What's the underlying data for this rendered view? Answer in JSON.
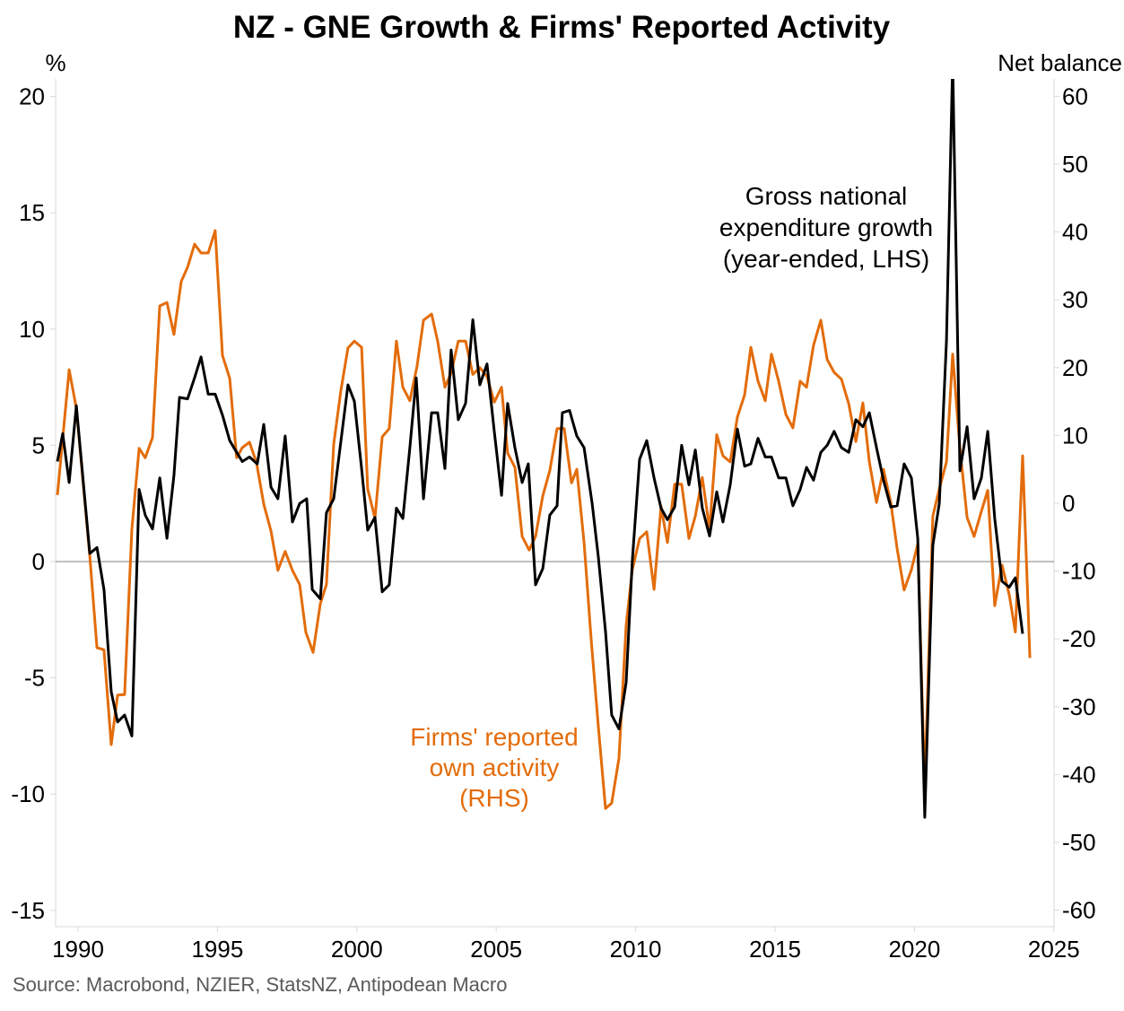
{
  "chart_data": {
    "type": "line",
    "title": "NZ - GNE Growth & Firms' Reported Activity",
    "left_axis": {
      "label": "%",
      "ticks": [
        20,
        15,
        10,
        5,
        0,
        -5,
        -10,
        -15
      ],
      "range": [
        -15.5,
        20.7
      ]
    },
    "right_axis": {
      "label": "Net balance",
      "ticks": [
        60,
        50,
        40,
        30,
        20,
        10,
        0,
        -10,
        -20,
        -30,
        -40,
        -50,
        -60
      ],
      "range": [
        -62,
        62
      ]
    },
    "x_axis": {
      "ticks": [
        1990,
        1995,
        2000,
        2005,
        2010,
        2015,
        2020,
        2025
      ],
      "range": [
        1989.2,
        2025
      ]
    },
    "zero_line": true,
    "colors": {
      "gne": "#000000",
      "firms": "#E36C0A",
      "zero": "#808080",
      "axis": "#d9d9d9"
    },
    "annotations": {
      "gne": [
        "Gross national",
        "expenditure growth",
        "(year-ended, LHS)"
      ],
      "firms": [
        "Firms' reported",
        "own activity",
        "(RHS)"
      ]
    },
    "series": [
      {
        "name": "Gross national expenditure growth (year-ended, LHS)",
        "axis": "left",
        "points": [
          [
            1989.26,
            4.3
          ],
          [
            1989.45,
            5.5
          ],
          [
            1989.68,
            3.4
          ],
          [
            1989.94,
            6.7
          ],
          [
            1990.42,
            0.35
          ],
          [
            1990.68,
            0.6
          ],
          [
            1990.93,
            -1.2
          ],
          [
            1991.19,
            -5.6
          ],
          [
            1991.42,
            -6.9
          ],
          [
            1991.67,
            -6.6
          ],
          [
            1991.93,
            -7.5
          ],
          [
            1992.19,
            3.1
          ],
          [
            1992.41,
            2.0
          ],
          [
            1992.67,
            1.4
          ],
          [
            1992.93,
            3.6
          ],
          [
            1993.19,
            1.0
          ],
          [
            1993.44,
            3.7
          ],
          [
            1993.64,
            7.06
          ],
          [
            1993.93,
            7.0
          ],
          [
            1994.18,
            7.9
          ],
          [
            1994.41,
            8.8
          ],
          [
            1994.67,
            7.2
          ],
          [
            1994.92,
            7.2
          ],
          [
            1995.18,
            6.3
          ],
          [
            1995.44,
            5.2
          ],
          [
            1995.69,
            4.7
          ],
          [
            1995.89,
            4.3
          ],
          [
            1996.15,
            4.5
          ],
          [
            1996.43,
            4.2
          ],
          [
            1996.66,
            5.9
          ],
          [
            1996.92,
            3.2
          ],
          [
            1997.17,
            2.7
          ],
          [
            1997.43,
            5.4
          ],
          [
            1997.69,
            1.7
          ],
          [
            1997.95,
            2.5
          ],
          [
            1998.2,
            2.7
          ],
          [
            1998.4,
            -1.2
          ],
          [
            1998.69,
            -1.6
          ],
          [
            1998.91,
            2.1
          ],
          [
            1999.17,
            2.7
          ],
          [
            1999.43,
            5.2
          ],
          [
            1999.68,
            7.6
          ],
          [
            1999.91,
            6.9
          ],
          [
            2000.17,
            4.0
          ],
          [
            2000.39,
            1.35
          ],
          [
            2000.65,
            1.9
          ],
          [
            2000.91,
            -1.3
          ],
          [
            2001.16,
            -1.0
          ],
          [
            2001.42,
            2.3
          ],
          [
            2001.65,
            1.85
          ],
          [
            2001.9,
            4.9
          ],
          [
            2002.13,
            7.9
          ],
          [
            2002.39,
            2.7
          ],
          [
            2002.68,
            6.4
          ],
          [
            2002.9,
            6.4
          ],
          [
            2003.16,
            4.0
          ],
          [
            2003.38,
            9.1
          ],
          [
            2003.64,
            6.1
          ],
          [
            2003.9,
            6.8
          ],
          [
            2004.16,
            10.4
          ],
          [
            2004.41,
            7.6
          ],
          [
            2004.67,
            8.5
          ],
          [
            2004.93,
            5.6
          ],
          [
            2005.19,
            2.85
          ],
          [
            2005.41,
            6.8
          ],
          [
            2005.67,
            4.9
          ],
          [
            2005.93,
            3.4
          ],
          [
            2006.15,
            4.2
          ],
          [
            2006.41,
            -1.0
          ],
          [
            2006.67,
            -0.3
          ],
          [
            2006.92,
            2.0
          ],
          [
            2007.18,
            2.4
          ],
          [
            2007.37,
            6.4
          ],
          [
            2007.63,
            6.5
          ],
          [
            2007.89,
            5.4
          ],
          [
            2008.15,
            4.9
          ],
          [
            2008.44,
            2.5
          ],
          [
            2008.66,
            0.2
          ],
          [
            2008.92,
            -3.0
          ],
          [
            2009.14,
            -6.6
          ],
          [
            2009.4,
            -7.2
          ],
          [
            2009.66,
            -5.2
          ],
          [
            2009.88,
            0.05
          ],
          [
            2010.14,
            4.4
          ],
          [
            2010.4,
            5.2
          ],
          [
            2010.66,
            3.6
          ],
          [
            2010.91,
            2.3
          ],
          [
            2011.14,
            1.8
          ],
          [
            2011.4,
            2.35
          ],
          [
            2011.65,
            5.0
          ],
          [
            2011.91,
            3.3
          ],
          [
            2012.14,
            4.8
          ],
          [
            2012.39,
            2.3
          ],
          [
            2012.65,
            1.1
          ],
          [
            2012.91,
            3.0
          ],
          [
            2013.13,
            1.7
          ],
          [
            2013.39,
            3.3
          ],
          [
            2013.65,
            5.7
          ],
          [
            2013.91,
            4.1
          ],
          [
            2014.13,
            4.2
          ],
          [
            2014.39,
            5.3
          ],
          [
            2014.65,
            4.5
          ],
          [
            2014.87,
            4.5
          ],
          [
            2015.13,
            3.6
          ],
          [
            2015.39,
            3.6
          ],
          [
            2015.64,
            2.4
          ],
          [
            2015.9,
            3.1
          ],
          [
            2016.13,
            4.05
          ],
          [
            2016.38,
            3.5
          ],
          [
            2016.64,
            4.7
          ],
          [
            2016.87,
            5.0
          ],
          [
            2017.12,
            5.6
          ],
          [
            2017.38,
            4.9
          ],
          [
            2017.64,
            4.7
          ],
          [
            2017.9,
            6.1
          ],
          [
            2018.15,
            5.8
          ],
          [
            2018.38,
            6.4
          ],
          [
            2018.64,
            4.9
          ],
          [
            2018.89,
            3.5
          ],
          [
            2019.15,
            2.35
          ],
          [
            2019.38,
            2.4
          ],
          [
            2019.63,
            4.2
          ],
          [
            2019.89,
            3.6
          ],
          [
            2020.12,
            1.0
          ],
          [
            2020.37,
            -11.0
          ],
          [
            2020.66,
            0.7
          ],
          [
            2020.89,
            2.5
          ],
          [
            2021.15,
            9.5
          ],
          [
            2021.37,
            21.5
          ],
          [
            2021.63,
            3.9
          ],
          [
            2021.89,
            5.8
          ],
          [
            2022.14,
            2.7
          ],
          [
            2022.4,
            3.6
          ],
          [
            2022.63,
            5.6
          ],
          [
            2022.88,
            1.85
          ],
          [
            2023.14,
            -0.85
          ],
          [
            2023.4,
            -1.1
          ],
          [
            2023.62,
            -0.7
          ],
          [
            2023.88,
            -3.1
          ]
        ]
      },
      {
        "name": "Firms' reported own activity (RHS)",
        "axis": "right",
        "points": [
          [
            1989.26,
            1.2
          ],
          [
            1989.68,
            19.7
          ],
          [
            1989.94,
            14.0
          ],
          [
            1990.42,
            -7.8
          ],
          [
            1990.68,
            -21.3
          ],
          [
            1990.93,
            -21.6
          ],
          [
            1991.19,
            -35.6
          ],
          [
            1991.42,
            -28.3
          ],
          [
            1991.67,
            -28.2
          ],
          [
            1991.93,
            -3.8
          ],
          [
            1992.19,
            8.1
          ],
          [
            1992.41,
            6.7
          ],
          [
            1992.67,
            9.7
          ],
          [
            1992.93,
            29.1
          ],
          [
            1993.19,
            29.6
          ],
          [
            1993.44,
            24.9
          ],
          [
            1993.7,
            32.7
          ],
          [
            1993.93,
            34.8
          ],
          [
            1994.18,
            38.2
          ],
          [
            1994.41,
            36.9
          ],
          [
            1994.67,
            36.9
          ],
          [
            1994.92,
            40.2
          ],
          [
            1995.18,
            21.8
          ],
          [
            1995.44,
            18.4
          ],
          [
            1995.69,
            6.7
          ],
          [
            1995.89,
            8.2
          ],
          [
            1996.15,
            9.0
          ],
          [
            1996.4,
            6.0
          ],
          [
            1996.66,
            -0.1
          ],
          [
            1996.92,
            -4.1
          ],
          [
            1997.17,
            -9.9
          ],
          [
            1997.43,
            -7.1
          ],
          [
            1997.69,
            -9.9
          ],
          [
            1997.95,
            -12.0
          ],
          [
            1998.17,
            -19.0
          ],
          [
            1998.43,
            -22.0
          ],
          [
            1998.69,
            -14.8
          ],
          [
            1998.91,
            -12.0
          ],
          [
            1999.17,
            8.7
          ],
          [
            1999.43,
            16.7
          ],
          [
            1999.68,
            22.9
          ],
          [
            1999.91,
            23.9
          ],
          [
            2000.17,
            23.0
          ],
          [
            2000.39,
            2.1
          ],
          [
            2000.65,
            -2.2
          ],
          [
            2000.91,
            9.8
          ],
          [
            2001.16,
            11.0
          ],
          [
            2001.42,
            23.9
          ],
          [
            2001.65,
            17.1
          ],
          [
            2001.9,
            15.1
          ],
          [
            2002.16,
            20.2
          ],
          [
            2002.39,
            27.0
          ],
          [
            2002.68,
            27.9
          ],
          [
            2002.9,
            23.9
          ],
          [
            2003.16,
            17.1
          ],
          [
            2003.38,
            19.2
          ],
          [
            2003.64,
            23.9
          ],
          [
            2003.9,
            23.9
          ],
          [
            2004.16,
            19.0
          ],
          [
            2004.41,
            20.0
          ],
          [
            2004.67,
            18.7
          ],
          [
            2004.93,
            14.9
          ],
          [
            2005.19,
            17.1
          ],
          [
            2005.41,
            7.4
          ],
          [
            2005.67,
            5.3
          ],
          [
            2005.93,
            -4.9
          ],
          [
            2006.18,
            -6.9
          ],
          [
            2006.41,
            -4.9
          ],
          [
            2006.67,
            1.1
          ],
          [
            2006.92,
            4.8
          ],
          [
            2007.18,
            11.0
          ],
          [
            2007.44,
            11.0
          ],
          [
            2007.7,
            3.0
          ],
          [
            2007.89,
            5.0
          ],
          [
            2008.15,
            -5.8
          ],
          [
            2008.41,
            -20.4
          ],
          [
            2008.66,
            -32.9
          ],
          [
            2008.92,
            -45.0
          ],
          [
            2009.14,
            -44.2
          ],
          [
            2009.4,
            -37.6
          ],
          [
            2009.66,
            -18.0
          ],
          [
            2009.88,
            -9.8
          ],
          [
            2010.14,
            -5.2
          ],
          [
            2010.4,
            -4.2
          ],
          [
            2010.66,
            -12.7
          ],
          [
            2010.91,
            -0.5
          ],
          [
            2011.14,
            -5.8
          ],
          [
            2011.4,
            2.8
          ],
          [
            2011.65,
            2.8
          ],
          [
            2011.91,
            -5.2
          ],
          [
            2012.14,
            -1.9
          ],
          [
            2012.39,
            3.8
          ],
          [
            2012.65,
            -3.8
          ],
          [
            2012.91,
            10.1
          ],
          [
            2013.13,
            7.0
          ],
          [
            2013.39,
            6.1
          ],
          [
            2013.65,
            12.7
          ],
          [
            2013.91,
            16.0
          ],
          [
            2014.13,
            23.0
          ],
          [
            2014.39,
            18.0
          ],
          [
            2014.65,
            15.1
          ],
          [
            2014.87,
            22.0
          ],
          [
            2015.13,
            18.0
          ],
          [
            2015.39,
            13.1
          ],
          [
            2015.64,
            11.1
          ],
          [
            2015.9,
            18.0
          ],
          [
            2016.13,
            17.1
          ],
          [
            2016.38,
            23.3
          ],
          [
            2016.64,
            27.0
          ],
          [
            2016.87,
            21.2
          ],
          [
            2017.12,
            19.3
          ],
          [
            2017.38,
            18.3
          ],
          [
            2017.64,
            14.7
          ],
          [
            2017.9,
            9.1
          ],
          [
            2018.15,
            14.8
          ],
          [
            2018.38,
            6.1
          ],
          [
            2018.64,
            0.1
          ],
          [
            2018.89,
            5.0
          ],
          [
            2019.15,
            0.1
          ],
          [
            2019.38,
            -6.7
          ],
          [
            2019.63,
            -12.8
          ],
          [
            2019.89,
            -9.8
          ],
          [
            2020.12,
            -6.0
          ],
          [
            2020.37,
            -42.2
          ],
          [
            2020.66,
            -1.9
          ],
          [
            2020.89,
            2.1
          ],
          [
            2021.15,
            6.1
          ],
          [
            2021.37,
            22.0
          ],
          [
            2021.63,
            8.1
          ],
          [
            2021.89,
            -2.1
          ],
          [
            2022.14,
            -4.9
          ],
          [
            2022.4,
            -1.2
          ],
          [
            2022.63,
            1.9
          ],
          [
            2022.88,
            -15.1
          ],
          [
            2023.14,
            -9.1
          ],
          [
            2023.4,
            -13.5
          ],
          [
            2023.62,
            -19.0
          ],
          [
            2023.88,
            7.0
          ],
          [
            2024.14,
            -22.8
          ]
        ]
      }
    ],
    "source": "Source: Macrobond, NZIER, StatsNZ, Antipodean Macro"
  }
}
